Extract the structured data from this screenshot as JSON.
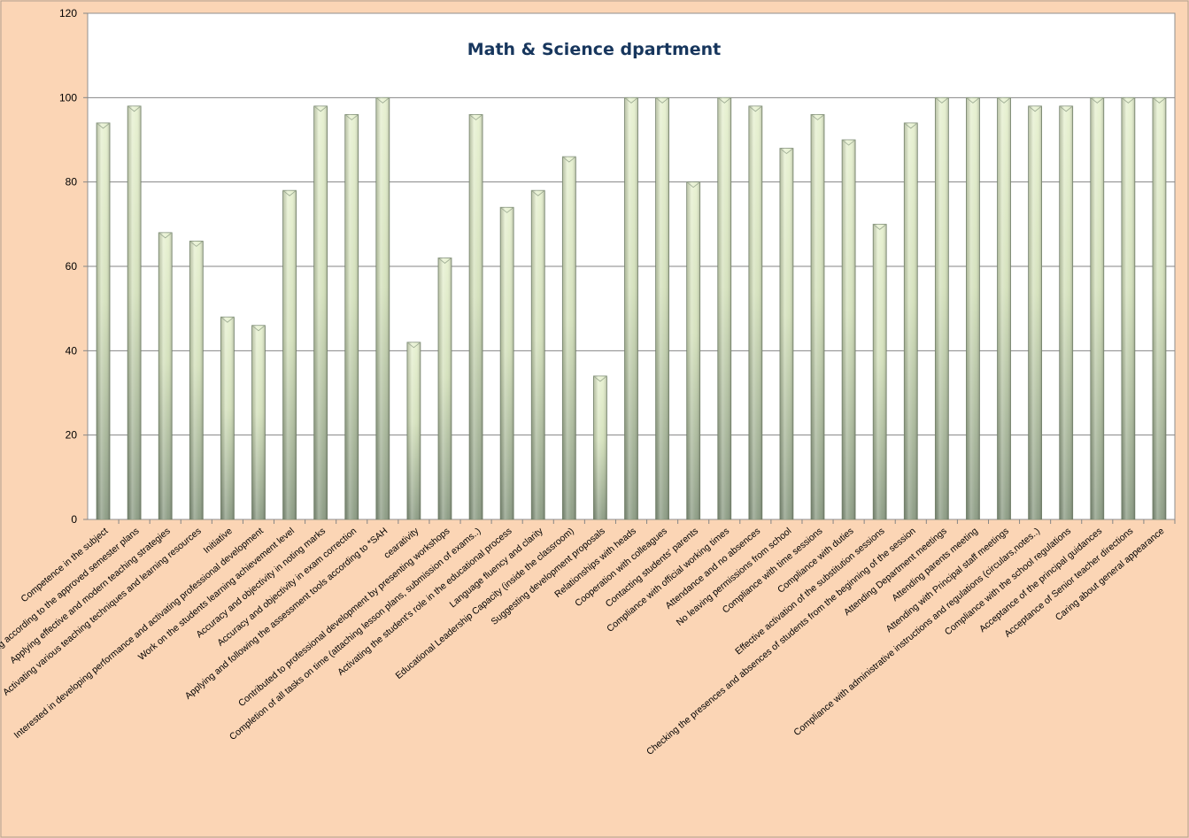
{
  "chart_data": {
    "type": "bar",
    "title": "Math & Science dpartment",
    "xlabel": "",
    "ylabel": "",
    "ylim": [
      0,
      120
    ],
    "yticks": [
      0,
      20,
      40,
      60,
      80,
      100,
      120
    ],
    "grid": true,
    "legend": "none",
    "categories": [
      "Competence in the subject",
      "Teaching according to the approved semester plans",
      "Applying effective and modern teaching strategies",
      "Activating various teaching techniques and learning resources",
      "Initiative",
      "Interested in developing performance and activating professional development",
      "Work on the students learning achievement level",
      "Accuracy and objectivity in noting marks",
      "Accuracy and objectivity in exam correction",
      "Applying and following the assessment tools according to *SAH",
      "cearativity",
      "Contributed to professional development by presenting workshops",
      "Completion of all tasks on time (attaching lesson plans, submission of exams..)",
      "Activating the student's role in the educational process",
      "Language fluency and clarity",
      "Educational Leadership Capacity (inside the classroom)",
      "Suggesting development proposals",
      "Relationships with heads",
      "Cooperation with  colleagues",
      "Contacting students'  parents",
      "Compliance with official working times",
      "Attendance and no absences",
      "No leaving permissions from school",
      "Compliance with time sessions",
      "Compliance with duties",
      "Effective activation of the substitution  sessions",
      "Checking the presences and absences of students from the beginning of the session",
      "Attending Department meetings",
      "Attending parents meeting",
      "Attending with Principal staff meetings",
      "Compliance with administrative  instructions and regulations (circulars,notes..)",
      "Compliance with the school regulations",
      "Acceptance of the principal guidances",
      "Acceptance of Senior teacher directions",
      "Caring about general appearance"
    ],
    "values": [
      94,
      98,
      68,
      66,
      48,
      46,
      78,
      98,
      96,
      100,
      42,
      62,
      96,
      74,
      78,
      86,
      34,
      100,
      100,
      80,
      100,
      98,
      88,
      96,
      90,
      70,
      94,
      100,
      100,
      100,
      98,
      98,
      100,
      100,
      100
    ],
    "colors": {
      "page_background": "#fbd5b5",
      "plot_background": "#ffffff",
      "bar_light": "#e6f0cf",
      "bar_dark": "#8a9a82",
      "bar_edge": "#7d8c74",
      "title": "#17365d",
      "gridline": "#868686"
    }
  }
}
